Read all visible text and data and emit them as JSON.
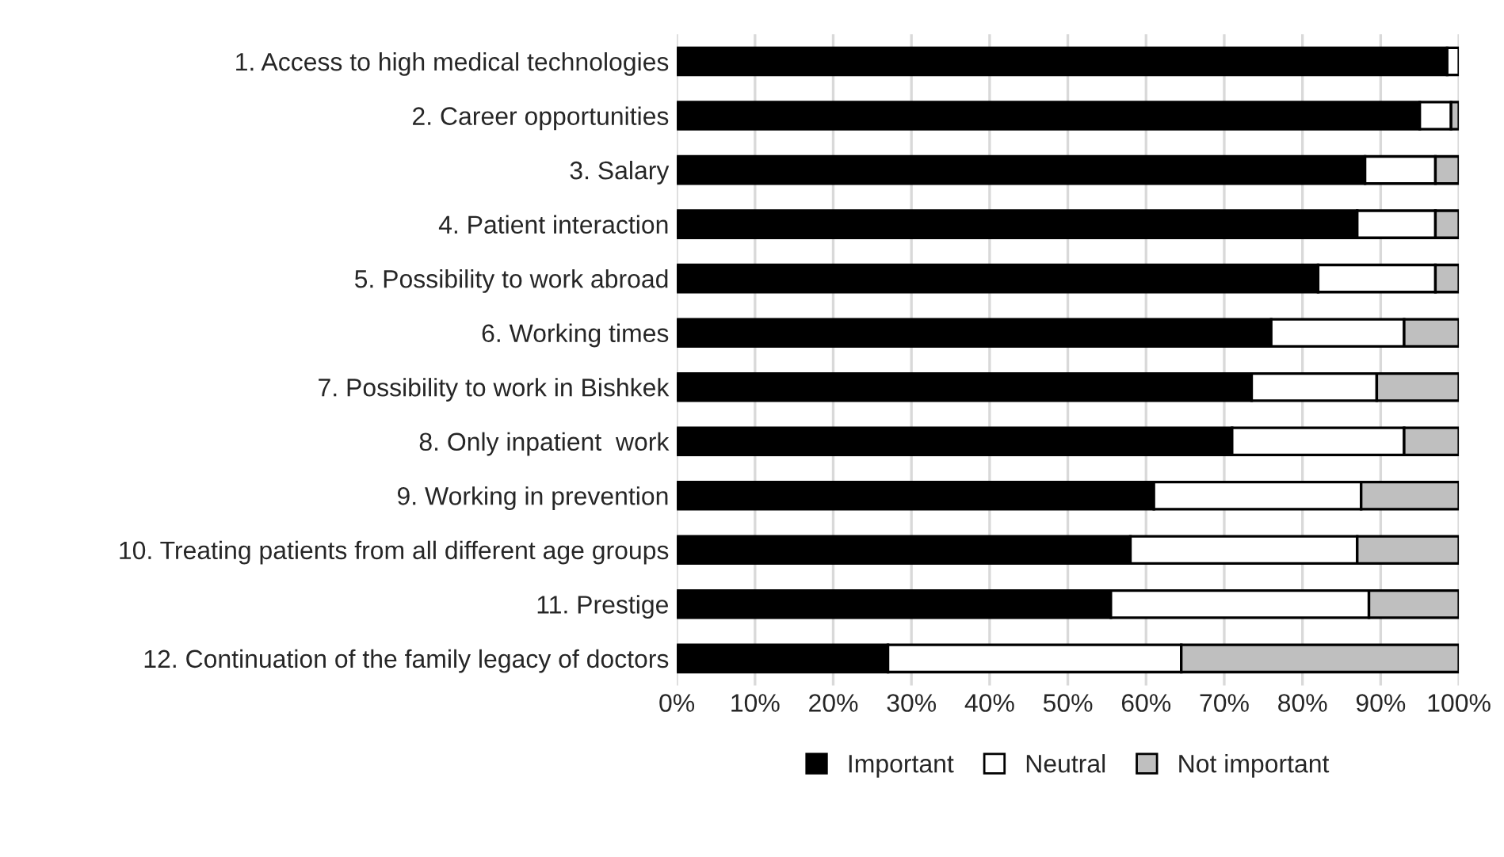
{
  "chart_data": {
    "type": "bar",
    "orientation": "horizontal",
    "stacked": true,
    "categories": [
      "1. Access to high medical technologies",
      "2. Career opportunities",
      "3. Salary",
      "4. Patient interaction",
      "5. Possibility to work abroad",
      "6. Working times",
      "7. Possibility to work in Bishkek",
      "8. Only inpatient  work",
      "9. Working in prevention",
      "10. Treating patients from all different age groups",
      "11. Prestige",
      "12. Continuation of the family legacy of doctors"
    ],
    "series": [
      {
        "name": "Important",
        "color": "#000000",
        "values": [
          98.5,
          95,
          88,
          87,
          82,
          76,
          73.5,
          71,
          61,
          58,
          55.5,
          27
        ]
      },
      {
        "name": "Neutral",
        "color": "#ffffff",
        "values": [
          1.5,
          4,
          9,
          10,
          15,
          17,
          16,
          22,
          26.5,
          29,
          33,
          37.5
        ]
      },
      {
        "name": "Not important",
        "color": "#bfbfbf",
        "values": [
          null,
          1,
          3,
          3,
          3,
          7,
          10.5,
          7,
          12.5,
          13,
          11.5,
          35.5
        ]
      }
    ],
    "xlim": [
      0,
      100
    ],
    "xticks": [
      {
        "value": 0,
        "label": "0%"
      },
      {
        "value": 10,
        "label": "10%"
      },
      {
        "value": 20,
        "label": "20%"
      },
      {
        "value": 30,
        "label": "30%"
      },
      {
        "value": 40,
        "label": "40%"
      },
      {
        "value": 50,
        "label": "50%"
      },
      {
        "value": 60,
        "label": "60%"
      },
      {
        "value": 70,
        "label": "70%"
      },
      {
        "value": 80,
        "label": "80%"
      },
      {
        "value": 90,
        "label": "90%"
      },
      {
        "value": 100,
        "label": "100%"
      }
    ],
    "grid": "x",
    "legend": "bottom"
  }
}
